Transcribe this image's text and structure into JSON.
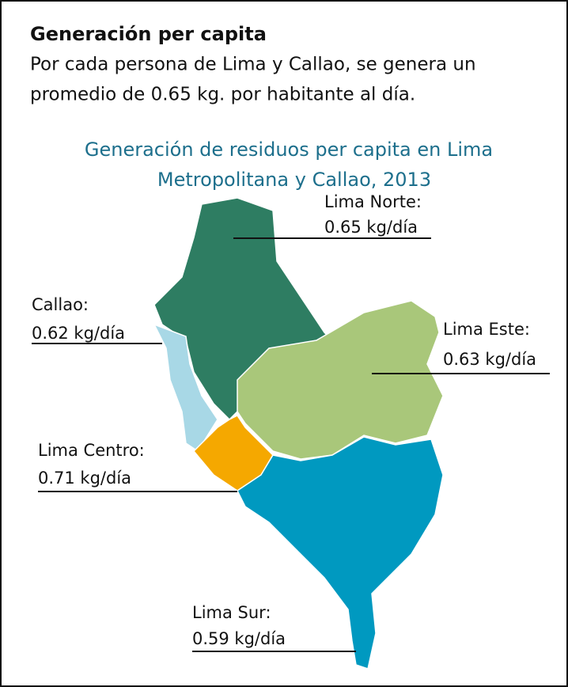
{
  "header": {
    "title": "Generación per capita",
    "lines": [
      "Por cada persona de Lima y Callao, se genera un",
      "promedio de 0.65 kg. por habitante al día."
    ]
  },
  "map": {
    "title_lines": [
      "Generación de residuos per capita en Lima",
      "Metropolitana y Callao, 2013"
    ],
    "regions": [
      {
        "name": "Lima Norte:",
        "value": "0.65 kg/día",
        "color": "#2e7d62"
      },
      {
        "name": "Callao:",
        "value": "0.62 kg/día",
        "color": "#a8d8e6"
      },
      {
        "name": "Lima Este:",
        "value": "0.63 kg/día",
        "color": "#a9c77a"
      },
      {
        "name": "Lima Centro:",
        "value": "0.71 kg/día",
        "color": "#f5a800"
      },
      {
        "name": "Lima Sur:",
        "value": "0.59 kg/día",
        "color": "#0099c0"
      }
    ]
  }
}
